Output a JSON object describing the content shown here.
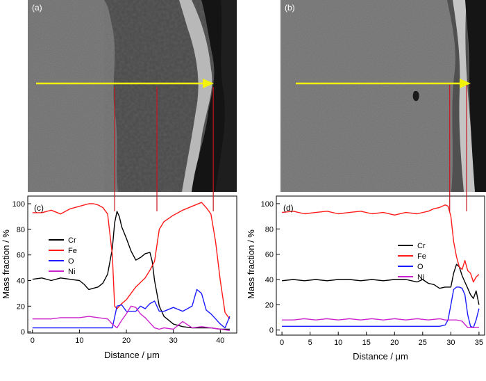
{
  "panel_labels": {
    "a": "(a)",
    "b": "(b)",
    "c": "(c)",
    "d": "(d)"
  },
  "colors": {
    "Cr": "#000000",
    "Fe": "#ff1a1a",
    "O": "#1a1aff",
    "Ni": "#cc22cc",
    "arrow": "#f2f20a",
    "marker": "#c8141e"
  },
  "chart_data": [
    {
      "panel": "(c)",
      "type": "line",
      "xlabel": "Distance / μm",
      "ylabel": "Mass fraction / %",
      "xlim": [
        -1,
        43.5
      ],
      "ylim": [
        -1,
        106
      ],
      "xticks": [
        0,
        10,
        20,
        30,
        40
      ],
      "yticks": [
        0,
        20,
        40,
        60,
        80,
        100
      ],
      "legend_position": "left-middle",
      "markers_x": [
        17.5,
        26.5,
        38.5
      ],
      "series": [
        {
          "name": "Cr",
          "x": [
            0,
            2,
            4,
            6,
            8,
            10,
            11,
            12,
            13,
            14,
            15,
            16,
            17,
            17.5,
            18,
            18.5,
            19,
            20,
            21,
            22,
            23,
            24,
            25,
            25.5,
            26,
            27,
            28,
            30,
            32,
            34,
            36,
            38,
            40,
            42
          ],
          "y": [
            41,
            42,
            40,
            42,
            41,
            40,
            37,
            33,
            34,
            35,
            38,
            45,
            65,
            85,
            94,
            90,
            82,
            73,
            63,
            56,
            58,
            61,
            62,
            55,
            40,
            20,
            12,
            6,
            4,
            3,
            3,
            3,
            2,
            2
          ]
        },
        {
          "name": "Fe",
          "x": [
            0,
            2,
            4,
            6,
            8,
            10,
            12,
            13,
            14,
            15,
            16,
            17,
            17.5,
            18,
            19,
            20,
            22,
            24,
            25,
            26,
            27,
            28,
            30,
            32,
            34,
            36,
            37,
            38,
            39,
            40,
            41,
            42
          ],
          "y": [
            93,
            93,
            95,
            92,
            96,
            98,
            100,
            100,
            99,
            97,
            92,
            60,
            20,
            18,
            22,
            25,
            35,
            42,
            48,
            55,
            80,
            86,
            91,
            95,
            98,
            101,
            97,
            92,
            70,
            40,
            15,
            10
          ]
        },
        {
          "name": "O",
          "x": [
            0,
            2,
            4,
            6,
            8,
            10,
            12,
            14,
            16,
            17,
            18,
            19,
            20,
            21,
            22,
            23,
            24,
            25,
            26,
            27,
            28,
            30,
            32,
            34,
            35,
            36,
            37,
            38,
            39,
            40,
            41,
            42
          ],
          "y": [
            3,
            3,
            3,
            3,
            3,
            3,
            3,
            3,
            3,
            3,
            20,
            21,
            16,
            16,
            16,
            20,
            18,
            22,
            24,
            16,
            16,
            19,
            16,
            20,
            33,
            30,
            17,
            14,
            10,
            6,
            3,
            12
          ]
        },
        {
          "name": "Ni",
          "x": [
            0,
            2,
            4,
            6,
            8,
            10,
            12,
            14,
            16,
            17,
            18,
            19,
            20,
            21,
            22,
            23,
            24,
            25,
            26,
            27,
            28,
            30,
            32,
            34,
            36,
            38,
            40,
            42
          ],
          "y": [
            10,
            10,
            10,
            11,
            11,
            11,
            12,
            11,
            10,
            6,
            3,
            9,
            14,
            20,
            19,
            14,
            11,
            7,
            3,
            2,
            3,
            2,
            8,
            3,
            4,
            3,
            2,
            1
          ]
        }
      ]
    },
    {
      "panel": "(d)",
      "type": "line",
      "xlabel": "Distance / μm",
      "ylabel": "Mass fraction / %",
      "xlim": [
        -1,
        36
      ],
      "ylim": [
        -4,
        106
      ],
      "xticks": [
        0,
        5,
        10,
        15,
        20,
        25,
        30,
        35
      ],
      "yticks": [
        0,
        20,
        40,
        60,
        80,
        100
      ],
      "legend_position": "right-middle",
      "markers_x": [
        29.8,
        32.8
      ],
      "series": [
        {
          "name": "Cr",
          "x": [
            0,
            2,
            4,
            6,
            8,
            10,
            12,
            14,
            16,
            18,
            20,
            22,
            24,
            25,
            26,
            27,
            28,
            29,
            30,
            30.5,
            31,
            31.5,
            32,
            32.5,
            33,
            33.5,
            34,
            34.5,
            35
          ],
          "y": [
            39,
            40,
            39,
            40,
            39,
            40,
            40,
            39,
            40,
            39,
            40,
            40,
            38,
            40,
            37,
            36,
            33,
            34,
            34,
            45,
            52,
            50,
            43,
            38,
            33,
            28,
            25,
            31,
            20
          ]
        },
        {
          "name": "Fe",
          "x": [
            0,
            2,
            4,
            6,
            8,
            10,
            12,
            14,
            16,
            18,
            20,
            22,
            24,
            26,
            27,
            28,
            29,
            29.5,
            30,
            30.5,
            31,
            31.5,
            32,
            32.5,
            33,
            33.5,
            34,
            34.5,
            35
          ],
          "y": [
            93,
            94,
            92,
            93,
            94,
            92,
            93,
            94,
            92,
            93,
            91,
            93,
            92,
            94,
            96,
            97,
            99,
            98,
            90,
            70,
            58,
            50,
            48,
            55,
            47,
            45,
            38,
            42,
            44
          ]
        },
        {
          "name": "O",
          "x": [
            0,
            2,
            4,
            6,
            8,
            10,
            12,
            14,
            16,
            18,
            20,
            22,
            24,
            26,
            28,
            29,
            29.5,
            30,
            30.5,
            31,
            31.5,
            32,
            32.5,
            33,
            33.5,
            34,
            34.5,
            35
          ],
          "y": [
            3,
            3,
            3,
            3,
            3,
            3,
            3,
            3,
            3,
            3,
            3,
            3,
            3,
            3,
            3,
            4,
            8,
            20,
            32,
            34,
            34,
            33,
            28,
            12,
            3,
            2,
            8,
            17
          ]
        },
        {
          "name": "Ni",
          "x": [
            0,
            2,
            4,
            6,
            8,
            10,
            12,
            14,
            16,
            18,
            20,
            22,
            24,
            26,
            28,
            29,
            30,
            31,
            32,
            33,
            34,
            35
          ],
          "y": [
            8,
            8,
            9,
            8,
            9,
            8,
            9,
            8,
            9,
            8,
            9,
            8,
            9,
            8,
            9,
            8,
            8,
            8,
            7,
            2,
            2,
            2
          ]
        }
      ]
    }
  ]
}
